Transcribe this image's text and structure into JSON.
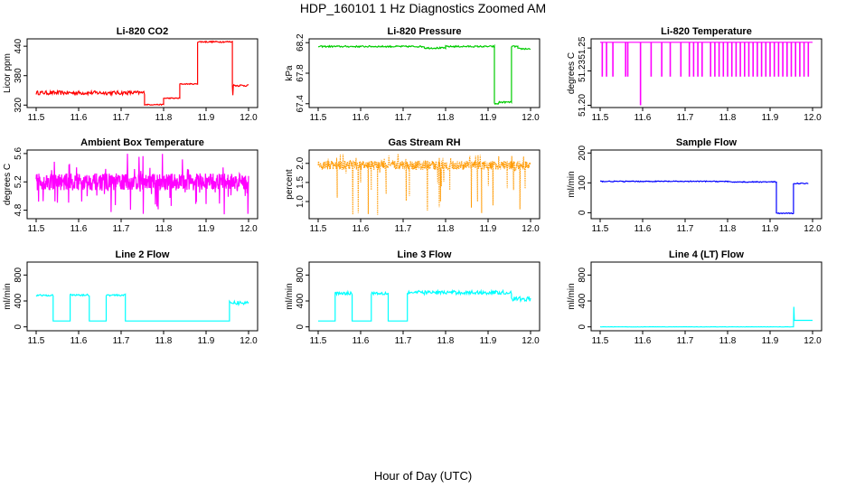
{
  "figure": {
    "title": "HDP_160101  1 Hz Diagnostics Zoomed AM",
    "xlabel": "Hour of Day (UTC)"
  },
  "chart_data": [
    {
      "type": "line",
      "title": "Li-820 CO2",
      "ylabel": "Licor ppm",
      "color": "#ff0000",
      "xlim": [
        11.5,
        12.0
      ],
      "xticks": [
        "11.5",
        "11.6",
        "11.7",
        "11.8",
        "11.9",
        "12.0"
      ],
      "ylim": [
        315,
        455
      ],
      "yticks": [
        320,
        380,
        440
      ],
      "ytick_labels": [
        "320",
        "380",
        "440"
      ],
      "series": [
        {
          "name": "CO2",
          "segments": [
            {
              "x0": 11.5,
              "x1": 11.755,
              "y": 345,
              "noise": 4
            },
            {
              "x0": 11.755,
              "x1": 11.8,
              "y": 321,
              "noise": 1
            },
            {
              "x0": 11.8,
              "x1": 11.838,
              "y": 334,
              "noise": 1
            },
            {
              "x0": 11.838,
              "x1": 11.88,
              "y": 363,
              "noise": 1
            },
            {
              "x0": 11.88,
              "x1": 11.962,
              "y": 449,
              "noise": 1.5
            },
            {
              "x0": 11.962,
              "x1": 12.0,
              "y": 360,
              "noise": 2
            }
          ],
          "spikes": [
            {
              "x": 11.963,
              "y": 340
            }
          ]
        }
      ]
    },
    {
      "type": "line",
      "title": "Li-820 Pressure",
      "ylabel": "kPa",
      "color": "#00cc00",
      "xlim": [
        11.5,
        12.0
      ],
      "xticks": [
        "11.5",
        "11.6",
        "11.7",
        "11.8",
        "11.9",
        "12.0"
      ],
      "ylim": [
        67.35,
        68.25
      ],
      "yticks": [
        67.4,
        67.8,
        68.2
      ],
      "ytick_labels": [
        "67.4",
        "67.8",
        "68.2"
      ],
      "series": [
        {
          "name": "Pressure",
          "segments": [
            {
              "x0": 11.5,
              "x1": 11.75,
              "y": 68.15,
              "noise": 0.01
            },
            {
              "x0": 11.75,
              "x1": 11.8,
              "y": 68.13,
              "noise": 0.01
            },
            {
              "x0": 11.8,
              "x1": 11.915,
              "y": 68.15,
              "noise": 0.01
            },
            {
              "x0": 11.915,
              "x1": 11.925,
              "y": 67.4,
              "noise": 0.01
            },
            {
              "x0": 11.925,
              "x1": 11.955,
              "y": 67.42,
              "noise": 0.01
            },
            {
              "x0": 11.955,
              "x1": 11.97,
              "y": 68.15,
              "noise": 0.01
            },
            {
              "x0": 11.97,
              "x1": 12.0,
              "y": 68.12,
              "noise": 0.01
            }
          ],
          "spikes": []
        }
      ]
    },
    {
      "type": "line",
      "title": "Li-820 Temperature",
      "ylabel": "degrees C",
      "color": "#ff00ff",
      "xlim": [
        11.5,
        12.0
      ],
      "xticks": [
        "11.5",
        "11.6",
        "11.7",
        "11.8",
        "11.9",
        "12.0"
      ],
      "ylim": [
        51.198,
        51.258
      ],
      "yticks": [
        51.2,
        51.23,
        51.25
      ],
      "ytick_labels": [
        "51.20",
        "51.23",
        "51.25"
      ],
      "series": [
        {
          "name": "Temperature",
          "baseline": 51.255,
          "low": 51.225,
          "min_spike": {
            "x": 11.595,
            "y": 51.2
          },
          "dips_x": [
            11.505,
            11.515,
            11.53,
            11.56,
            11.565,
            11.62,
            11.645,
            11.665,
            11.69,
            11.71,
            11.72,
            11.73,
            11.74,
            11.76,
            11.77,
            11.78,
            11.79,
            11.8,
            11.81,
            11.82,
            11.83,
            11.84,
            11.85,
            11.86,
            11.87,
            11.88,
            11.89,
            11.9,
            11.91,
            11.92,
            11.93,
            11.94,
            11.95,
            11.96,
            11.97,
            11.98,
            11.99
          ]
        }
      ]
    },
    {
      "type": "line",
      "title": "Ambient Box Temperature",
      "ylabel": "degrees C",
      "color": "#ff00ff",
      "xlim": [
        11.5,
        12.0
      ],
      "xticks": [
        "11.5",
        "11.6",
        "11.7",
        "11.8",
        "11.9",
        "12.0"
      ],
      "ylim": [
        4.68,
        5.65
      ],
      "yticks": [
        4.8,
        5.2,
        5.6
      ],
      "ytick_labels": [
        "4.8",
        "5.2",
        "5.6"
      ],
      "series": [
        {
          "name": "Box Temp",
          "noisy_band": {
            "center": 5.2,
            "half": 0.12,
            "spike_low": 4.72,
            "spike_high": 5.6
          }
        }
      ]
    },
    {
      "type": "line",
      "title": "Gas Stream RH",
      "ylabel": "percent",
      "color": "#ff9900",
      "xlim": [
        11.5,
        12.0
      ],
      "xticks": [
        "11.5",
        "11.6",
        "11.7",
        "11.8",
        "11.9",
        "12.0"
      ],
      "ylim": [
        0.55,
        2.35
      ],
      "yticks": [
        1.0,
        1.5,
        2.0
      ],
      "ytick_labels": [
        "1.0",
        "1.5",
        "2.0"
      ],
      "series": [
        {
          "name": "RH",
          "noisy_band": {
            "center": 1.95,
            "half": 0.12,
            "spike_low": 0.65,
            "spike_high": 2.25
          },
          "deep_dips": [
            {
              "x": 11.545,
              "y": 1.1
            },
            {
              "x": 11.6,
              "y": 1.5
            },
            {
              "x": 11.625,
              "y": 1.3
            },
            {
              "x": 11.64,
              "y": 0.65
            },
            {
              "x": 11.66,
              "y": 1.2
            },
            {
              "x": 11.715,
              "y": 1.15
            },
            {
              "x": 11.785,
              "y": 0.85
            },
            {
              "x": 11.79,
              "y": 1.4
            },
            {
              "x": 11.81,
              "y": 1.3
            },
            {
              "x": 11.875,
              "y": 1.0
            },
            {
              "x": 11.885,
              "y": 0.7
            },
            {
              "x": 11.945,
              "y": 1.35
            },
            {
              "x": 11.96,
              "y": 1.3
            }
          ]
        }
      ]
    },
    {
      "type": "line",
      "title": "Sample Flow",
      "ylabel": "ml/min",
      "color": "#0000ff",
      "xlim": [
        11.5,
        12.0
      ],
      "xticks": [
        "11.5",
        "11.6",
        "11.7",
        "11.8",
        "11.9",
        "12.0"
      ],
      "ylim": [
        -20,
        210
      ],
      "yticks": [
        0,
        100,
        200
      ],
      "ytick_labels": [
        "0",
        "100",
        "200"
      ],
      "series": [
        {
          "name": "Sample Flow",
          "segments": [
            {
              "x0": 11.5,
              "x1": 11.8,
              "y": 105,
              "noise": 1.5
            },
            {
              "x0": 11.8,
              "x1": 11.915,
              "y": 103,
              "noise": 1.5
            },
            {
              "x0": 11.915,
              "x1": 11.955,
              "y": -2,
              "noise": 1.5
            },
            {
              "x0": 11.955,
              "x1": 11.99,
              "y": 98,
              "noise": 1.5
            }
          ],
          "spikes": []
        }
      ]
    },
    {
      "type": "line",
      "title": "Line 2 Flow",
      "ylabel": "ml/min",
      "color": "#00ffff",
      "xlim": [
        11.5,
        12.0
      ],
      "xticks": [
        "11.5",
        "11.6",
        "11.7",
        "11.8",
        "11.9",
        "12.0"
      ],
      "ylim": [
        -60,
        1000
      ],
      "yticks": [
        0,
        400,
        800
      ],
      "ytick_labels": [
        "0",
        "400",
        "800"
      ],
      "series": [
        {
          "name": "Line 2",
          "segments": [
            {
              "x0": 11.5,
              "x1": 11.54,
              "y": 490,
              "noise": 15
            },
            {
              "x0": 11.54,
              "x1": 11.58,
              "y": 90,
              "noise": 0
            },
            {
              "x0": 11.58,
              "x1": 11.625,
              "y": 490,
              "noise": 15
            },
            {
              "x0": 11.625,
              "x1": 11.665,
              "y": 90,
              "noise": 0
            },
            {
              "x0": 11.665,
              "x1": 11.71,
              "y": 490,
              "noise": 15
            },
            {
              "x0": 11.71,
              "x1": 11.955,
              "y": 90,
              "noise": 0
            },
            {
              "x0": 11.955,
              "x1": 12.0,
              "y": 370,
              "noise": 30
            }
          ],
          "spikes": []
        }
      ]
    },
    {
      "type": "line",
      "title": "Line 3 Flow",
      "ylabel": "ml/min",
      "color": "#00ffff",
      "xlim": [
        11.5,
        12.0
      ],
      "xticks": [
        "11.5",
        "11.6",
        "11.7",
        "11.8",
        "11.9",
        "12.0"
      ],
      "ylim": [
        -60,
        1000
      ],
      "yticks": [
        0,
        400,
        800
      ],
      "ytick_labels": [
        "0",
        "400",
        "800"
      ],
      "series": [
        {
          "name": "Line 3",
          "segments": [
            {
              "x0": 11.5,
              "x1": 11.54,
              "y": 90,
              "noise": 0
            },
            {
              "x0": 11.54,
              "x1": 11.58,
              "y": 520,
              "noise": 25
            },
            {
              "x0": 11.58,
              "x1": 11.625,
              "y": 90,
              "noise": 0
            },
            {
              "x0": 11.625,
              "x1": 11.665,
              "y": 520,
              "noise": 25
            },
            {
              "x0": 11.665,
              "x1": 11.71,
              "y": 90,
              "noise": 0
            },
            {
              "x0": 11.71,
              "x1": 11.955,
              "y": 530,
              "noise": 30
            },
            {
              "x0": 11.955,
              "x1": 12.0,
              "y": 430,
              "noise": 35
            }
          ],
          "spikes": []
        }
      ]
    },
    {
      "type": "line",
      "title": "Line 4 (LT) Flow",
      "ylabel": "ml/min",
      "color": "#00ffff",
      "xlim": [
        11.5,
        12.0
      ],
      "xticks": [
        "11.5",
        "11.6",
        "11.7",
        "11.8",
        "11.9",
        "12.0"
      ],
      "ylim": [
        -60,
        1000
      ],
      "yticks": [
        0,
        400,
        800
      ],
      "ytick_labels": [
        "0",
        "400",
        "800"
      ],
      "series": [
        {
          "name": "Line 4",
          "segments": [
            {
              "x0": 11.5,
              "x1": 11.955,
              "y": 0,
              "noise": 2
            },
            {
              "x0": 11.958,
              "x1": 12.0,
              "y": 100,
              "noise": 0
            }
          ],
          "spikes": [
            {
              "x": 11.956,
              "y": 310
            }
          ]
        }
      ]
    }
  ]
}
